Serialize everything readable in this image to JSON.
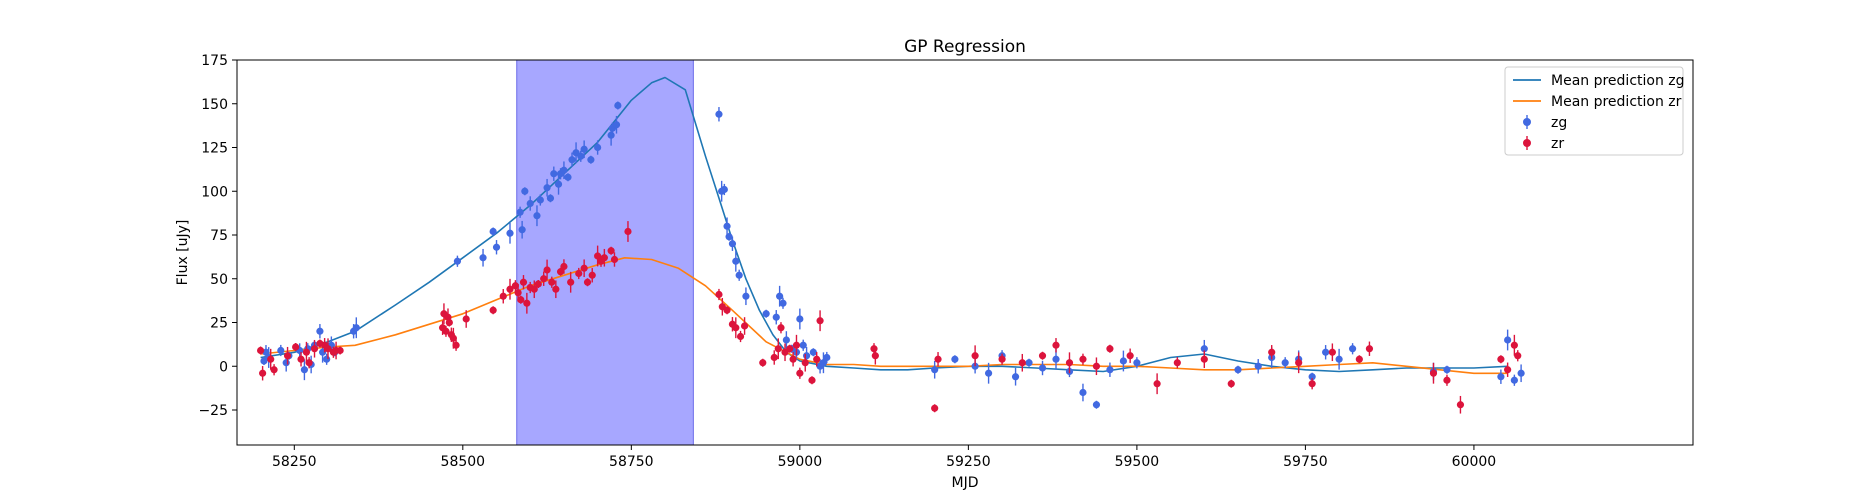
{
  "chart_data": {
    "type": "scatter",
    "title": "GP Regression",
    "xlabel": "MJD",
    "ylabel": "Flux [uJy]",
    "xlim": [
      58165,
      60325
    ],
    "ylim": [
      -45,
      175
    ],
    "xticks": [
      58250,
      58500,
      58750,
      59000,
      59250,
      59500,
      59750,
      60000
    ],
    "yticks": [
      -25,
      0,
      25,
      50,
      75,
      100,
      125,
      150,
      175
    ],
    "grid": false,
    "legend_position": "top-right",
    "shaded_region": {
      "x0": 58580,
      "x1": 58842,
      "color": "#a7a7ff"
    },
    "colors": {
      "zg_line": "#1f77b4",
      "zr_line": "#ff7f0e",
      "zg_points": "#4169e1",
      "zr_points": "#dc143c",
      "shade": "#a7a7ff"
    },
    "legend": [
      {
        "label": "Mean prediction zg",
        "kind": "line",
        "color": "#1f77b4"
      },
      {
        "label": "Mean prediction zr",
        "kind": "line",
        "color": "#ff7f0e"
      },
      {
        "label": "zg",
        "kind": "marker",
        "color": "#4169e1"
      },
      {
        "label": "zr",
        "kind": "marker",
        "color": "#dc143c"
      }
    ],
    "lines": [
      {
        "name": "Mean prediction zg",
        "color": "#1f77b4",
        "x": [
          58200,
          58250,
          58300,
          58340,
          58400,
          58450,
          58500,
          58550,
          58600,
          58650,
          58700,
          58750,
          58780,
          58800,
          58830,
          58860,
          58880,
          58900,
          58920,
          58940,
          58960,
          58980,
          59000,
          59040,
          59080,
          59120,
          59160,
          59200,
          59250,
          59300,
          59350,
          59400,
          59450,
          59500,
          59550,
          59600,
          59650,
          59700,
          59750,
          59800,
          59850,
          59900,
          59950,
          60000,
          60050
        ],
        "y": [
          5,
          8,
          14,
          20,
          35,
          48,
          62,
          76,
          92,
          110,
          128,
          152,
          162,
          165,
          158,
          120,
          96,
          72,
          50,
          32,
          18,
          8,
          3,
          0,
          -1,
          -2,
          -2,
          -1,
          0,
          0,
          -1,
          -2,
          -3,
          0,
          5,
          7,
          3,
          0,
          -2,
          -3,
          -2,
          -1,
          -1,
          -1,
          0
        ]
      },
      {
        "name": "Mean prediction zr",
        "color": "#ff7f0e",
        "x": [
          58200,
          58250,
          58300,
          58340,
          58400,
          58450,
          58500,
          58550,
          58600,
          58650,
          58700,
          58740,
          58780,
          58820,
          58860,
          58900,
          58950,
          59000,
          59040,
          59080,
          59120,
          59160,
          59200,
          59250,
          59300,
          59350,
          59400,
          59450,
          59500,
          59550,
          59600,
          59650,
          59700,
          59750,
          59800,
          59850,
          59900,
          59950,
          60000,
          60050
        ],
        "y": [
          7,
          9,
          11,
          12,
          18,
          24,
          30,
          38,
          46,
          52,
          58,
          62,
          61,
          56,
          46,
          32,
          14,
          4,
          1,
          1,
          0,
          0,
          0,
          0,
          1,
          1,
          1,
          0,
          0,
          -1,
          -2,
          -2,
          -1,
          0,
          1,
          2,
          0,
          -2,
          -4,
          -4
        ]
      }
    ],
    "series": [
      {
        "name": "zg",
        "color": "#4169e1",
        "x": [
          58205,
          58208,
          58212,
          58230,
          58238,
          58242,
          58258,
          58265,
          58270,
          58275,
          58280,
          58288,
          58292,
          58298,
          58305,
          58310,
          58338,
          58342,
          58492,
          58530,
          58545,
          58550,
          58570,
          58585,
          58588,
          58592,
          58600,
          58610,
          58615,
          58625,
          58630,
          58635,
          58642,
          58645,
          58650,
          58656,
          58662,
          58668,
          58675,
          58680,
          58690,
          58700,
          58720,
          58722,
          58728,
          58730,
          58880,
          58884,
          58888,
          58892,
          58895,
          58900,
          58905,
          58910,
          58920,
          58950,
          58965,
          58970,
          58975,
          58980,
          58988,
          58995,
          59000,
          59005,
          59010,
          59020,
          59030,
          59035,
          59040,
          59200,
          59230,
          59260,
          59280,
          59300,
          59320,
          59340,
          59360,
          59380,
          59400,
          59420,
          59440,
          59460,
          59480,
          59500,
          59600,
          59650,
          59680,
          59700,
          59720,
          59740,
          59760,
          59780,
          59800,
          59820,
          59940,
          59960,
          60040,
          60050,
          60060,
          60070
        ],
        "y": [
          3,
          8,
          5,
          9,
          2,
          6,
          9,
          -2,
          10,
          1,
          12,
          20,
          8,
          4,
          12,
          8,
          20,
          22,
          60,
          62,
          77,
          68,
          76,
          88,
          78,
          100,
          93,
          86,
          95,
          102,
          96,
          110,
          104,
          110,
          112,
          108,
          118,
          122,
          120,
          124,
          118,
          125,
          132,
          136,
          138,
          149,
          144,
          100,
          101,
          80,
          74,
          70,
          60,
          52,
          40,
          30,
          28,
          40,
          36,
          15,
          10,
          8,
          27,
          12,
          6,
          8,
          0,
          2,
          5,
          -2,
          4,
          0,
          -4,
          6,
          -6,
          2,
          -1,
          4,
          -3,
          -15,
          -22,
          -2,
          3,
          2,
          10,
          -2,
          0,
          5,
          2,
          4,
          -6,
          8,
          4,
          10,
          -3,
          -2,
          -6,
          15,
          -8,
          -4
        ]
      },
      {
        "name": "zr",
        "color": "#dc143c",
        "x": [
          58200,
          58203,
          58215,
          58220,
          58240,
          58252,
          58260,
          58268,
          58272,
          58280,
          58288,
          58295,
          58300,
          58308,
          58312,
          58318,
          58470,
          58472,
          58475,
          58478,
          58480,
          58483,
          58486,
          58490,
          58505,
          58545,
          58560,
          58570,
          58578,
          58582,
          58586,
          58590,
          58595,
          58600,
          58606,
          58612,
          58620,
          58625,
          58632,
          58638,
          58645,
          58650,
          58660,
          58672,
          58680,
          58685,
          58692,
          58700,
          58705,
          58710,
          58720,
          58725,
          58745,
          58880,
          58885,
          58892,
          58900,
          58905,
          58912,
          58918,
          58945,
          58962,
          58968,
          58972,
          58978,
          58985,
          58990,
          58995,
          59000,
          59008,
          59018,
          59025,
          59030,
          59110,
          59112,
          59200,
          59205,
          59260,
          59300,
          59330,
          59360,
          59380,
          59400,
          59420,
          59440,
          59460,
          59490,
          59530,
          59560,
          59600,
          59640,
          59700,
          59740,
          59760,
          59790,
          59830,
          59845,
          59940,
          59960,
          59980,
          60040,
          60050,
          60060,
          60065
        ],
        "y": [
          9,
          -4,
          4,
          -2,
          6,
          11,
          4,
          8,
          2,
          10,
          13,
          12,
          10,
          8,
          9,
          9,
          22,
          30,
          20,
          28,
          25,
          18,
          16,
          12,
          27,
          32,
          40,
          44,
          46,
          42,
          38,
          48,
          36,
          45,
          44,
          47,
          50,
          55,
          48,
          44,
          54,
          57,
          48,
          53,
          56,
          48,
          52,
          63,
          60,
          62,
          66,
          61,
          77,
          41,
          34,
          32,
          24,
          22,
          17,
          23,
          2,
          5,
          10,
          22,
          8,
          10,
          4,
          12,
          -4,
          2,
          -8,
          4,
          26,
          10,
          6,
          -24,
          4,
          6,
          4,
          2,
          6,
          12,
          2,
          4,
          0,
          10,
          6,
          -10,
          2,
          4,
          -10,
          8,
          2,
          -10,
          8,
          4,
          10,
          -4,
          -8,
          -22,
          4,
          -2,
          12,
          6
        ]
      }
    ]
  }
}
